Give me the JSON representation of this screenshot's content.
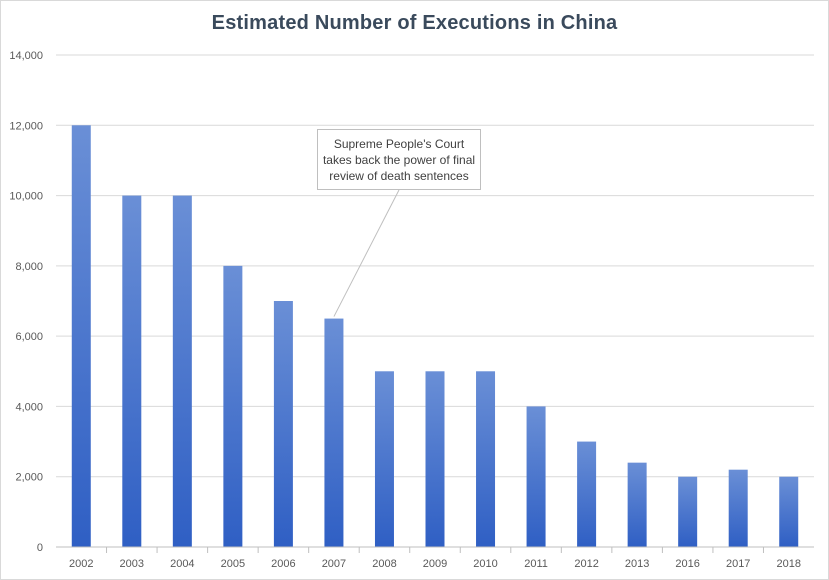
{
  "chart_data": {
    "type": "bar",
    "title": "Estimated  Number of Executions in China",
    "xlabel": "",
    "ylabel": "",
    "categories": [
      "2002",
      "2003",
      "2004",
      "2005",
      "2006",
      "2007",
      "2008",
      "2009",
      "2010",
      "2011",
      "2012",
      "2013",
      "2016",
      "2017",
      "2018"
    ],
    "values": [
      12000,
      10000,
      10000,
      8000,
      7000,
      6500,
      5000,
      5000,
      5000,
      4000,
      3000,
      2400,
      2000,
      2200,
      2000
    ],
    "ylim": [
      0,
      14000
    ],
    "yticks": [
      0,
      2000,
      4000,
      6000,
      8000,
      10000,
      12000,
      14000
    ],
    "ytick_labels": [
      "0",
      "2,000",
      "4,000",
      "6,000",
      "8,000",
      "10,000",
      "12,000",
      "14,000"
    ],
    "grid": true,
    "legend": "none",
    "bar_color_top": "#6a8fd6",
    "bar_color_bottom": "#2f5fc4",
    "annotation": {
      "text": "Supreme People's Court takes back the power of final review of death sentences",
      "target_category": "2007"
    }
  }
}
